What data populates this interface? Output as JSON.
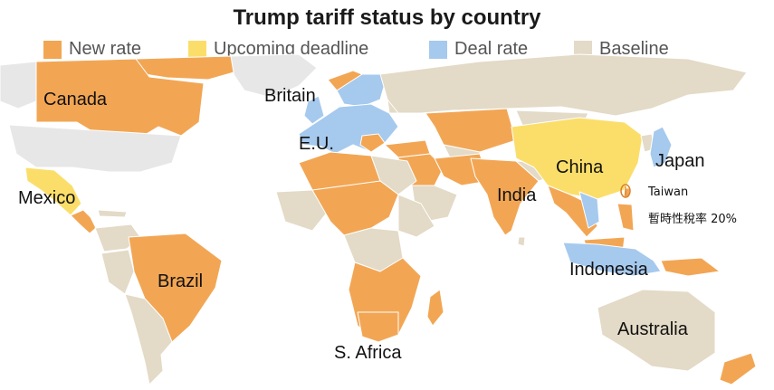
{
  "title": "Trump tariff status by country",
  "legend": [
    {
      "label": "New rate",
      "color": "#f2a654"
    },
    {
      "label": "Upcoming deadline",
      "color": "#fbde6a"
    },
    {
      "label": "Deal rate",
      "color": "#a6c9ee"
    },
    {
      "label": "Baseline",
      "color": "#e3dac7"
    }
  ],
  "colors": {
    "unlisted": "#e7e7e7",
    "ocean": "#ffffff",
    "border": "#ffffff",
    "taiwan_marker": "#d9822b"
  },
  "labels": {
    "canada": "Canada",
    "britain": "Britain",
    "eu": "E.U.",
    "mexico": "Mexico",
    "brazil": "Brazil",
    "india": "India",
    "china": "China",
    "japan": "Japan",
    "indonesia": "Indonesia",
    "s_africa": "S. Africa",
    "australia": "Australia"
  },
  "taiwan": {
    "name": "Taiwan",
    "note": "暫時性稅率 20%"
  }
}
